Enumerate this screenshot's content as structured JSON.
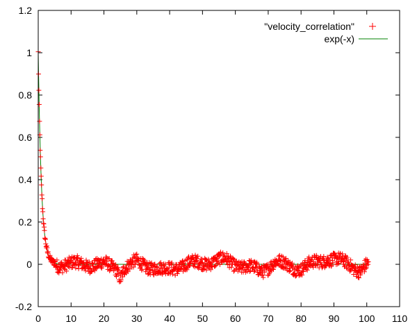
{
  "chart_data": {
    "type": "scatter",
    "title": "",
    "xlabel": "",
    "ylabel": "",
    "xlim": [
      0,
      110
    ],
    "ylim": [
      -0.2,
      1.2
    ],
    "xticks": [
      0,
      10,
      20,
      30,
      40,
      50,
      60,
      70,
      80,
      90,
      100,
      110
    ],
    "yticks": [
      -0.2,
      0,
      0.2,
      0.4,
      0.6,
      0.8,
      1,
      1.2
    ],
    "xtick_labels": [
      "0",
      "10",
      "20",
      "30",
      "40",
      "50",
      "60",
      "70",
      "80",
      "90",
      "100",
      "110"
    ],
    "ytick_labels": [
      "-0.2",
      "0",
      "0.2",
      "0.4",
      "0.6",
      "0.8",
      "1",
      "1.2"
    ],
    "grid": false,
    "legend_position": "top-right",
    "series": [
      {
        "name": "\"velocity_correlation\"",
        "kind": "points",
        "marker": "plus",
        "color": "#ff0000",
        "x_range": [
          0,
          100.5
        ],
        "behavior": "decays like exp(-x) from 1 to about 0 by x≈5, then fluctuates noisily around 0 with amplitude ≈ ±0.05 and dips near x≈25 (≈ -0.08), 38, 68, 80 and 98",
        "x_anchor": [
          0,
          0.5,
          1,
          1.5,
          2,
          3,
          4,
          5,
          6,
          10,
          20,
          24,
          25,
          26,
          30,
          38,
          45,
          57,
          62,
          68,
          72,
          80,
          88,
          95,
          98,
          100.5
        ],
        "y_anchor": [
          1.0,
          0.61,
          0.37,
          0.22,
          0.14,
          0.05,
          0.02,
          0.01,
          0.0,
          0.0,
          0.0,
          -0.02,
          -0.06,
          -0.02,
          0.01,
          -0.03,
          0.0,
          0.02,
          -0.01,
          -0.03,
          0.01,
          -0.02,
          0.03,
          0.0,
          -0.03,
          0.0
        ]
      },
      {
        "name": "exp(-x)",
        "kind": "line",
        "color": "#008000",
        "function": "exp(-x)",
        "x_range": [
          0,
          100
        ]
      }
    ]
  }
}
